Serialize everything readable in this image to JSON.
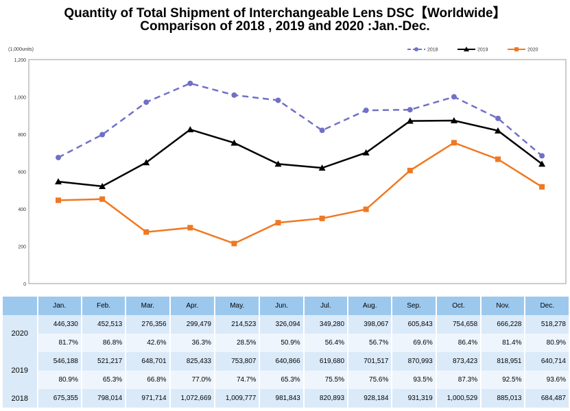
{
  "chart_data": {
    "type": "line",
    "title": "Quantity of Total Shipment of Interchangeable Lens DSC【Worldwide】",
    "subtitle": "Comparison of 2018 , 2019 and 2020 :Jan.-Dec.",
    "ylabel": "(1,000units)",
    "ylim": [
      0,
      1200
    ],
    "yticks": [
      "0",
      "200",
      "400",
      "600",
      "800",
      "1,000",
      "1,200"
    ],
    "categories": [
      "Jan.",
      "Feb.",
      "Mar.",
      "Apr.",
      "May.",
      "Jun.",
      "Jul.",
      "Aug.",
      "Sep.",
      "Oct.",
      "Nov.",
      "Dec."
    ],
    "legend_position": "top-right",
    "series": [
      {
        "name": "2018",
        "color": "#7070c8",
        "style": "dashed",
        "values": [
          675.355,
          798.014,
          971.714,
          1072.669,
          1009.777,
          981.843,
          820.893,
          928.184,
          931.319,
          1000.529,
          885.013,
          684.487
        ]
      },
      {
        "name": "2019",
        "color": "#000000",
        "style": "solid",
        "values": [
          546.188,
          521.217,
          648.701,
          825.433,
          753.807,
          640.866,
          619.68,
          701.517,
          870.993,
          873.423,
          818.951,
          640.714
        ]
      },
      {
        "name": "2020",
        "color": "#f07820",
        "style": "solid",
        "values": [
          446.33,
          452.513,
          276.356,
          299.479,
          214.523,
          326.094,
          349.28,
          398.067,
          605.843,
          754.658,
          666.228,
          518.278
        ]
      }
    ]
  },
  "table": {
    "rows": [
      {
        "year": "2020",
        "values": [
          "446,330",
          "452,513",
          "276,356",
          "299,479",
          "214,523",
          "326,094",
          "349,280",
          "398,067",
          "605,843",
          "754,658",
          "666,228",
          "518,278"
        ],
        "pct": [
          "81.7%",
          "86.8%",
          "42.6%",
          "36.3%",
          "28.5%",
          "50.9%",
          "56.4%",
          "56.7%",
          "69.6%",
          "86.4%",
          "81.4%",
          "80.9%"
        ]
      },
      {
        "year": "2019",
        "values": [
          "546,188",
          "521,217",
          "648,701",
          "825,433",
          "753,807",
          "640,866",
          "619,680",
          "701,517",
          "870,993",
          "873,423",
          "818,951",
          "640,714"
        ],
        "pct": [
          "80.9%",
          "65.3%",
          "66.8%",
          "77.0%",
          "74.7%",
          "65.3%",
          "75.5%",
          "75.6%",
          "93.5%",
          "87.3%",
          "92.5%",
          "93.6%"
        ]
      },
      {
        "year": "2018",
        "values": [
          "675,355",
          "798,014",
          "971,714",
          "1,072,669",
          "1,009,777",
          "981,843",
          "820,893",
          "928,184",
          "931,319",
          "1,000,529",
          "885,013",
          "684,487"
        ]
      }
    ]
  }
}
